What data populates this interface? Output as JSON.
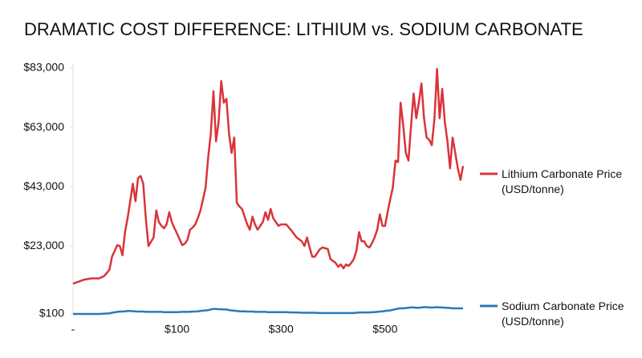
{
  "chart_data": {
    "type": "line",
    "title": "DRAMATIC COST DIFFERENCE: LITHIUM vs. SODIUM CARBONATE",
    "x": [
      0,
      4,
      7,
      10,
      12,
      14,
      15,
      17,
      18,
      19,
      20,
      21,
      22,
      23,
      24,
      25,
      26,
      27,
      28,
      29,
      31,
      32,
      33,
      34,
      35,
      36,
      37,
      38,
      39,
      40,
      42,
      43,
      44,
      45,
      46,
      47,
      48,
      49,
      50,
      51,
      52,
      53,
      54,
      55,
      56,
      57,
      58,
      59,
      60,
      61,
      62,
      63,
      64,
      65,
      66,
      67,
      68,
      69,
      70,
      71,
      72,
      73,
      74,
      75,
      76,
      77,
      78,
      79,
      80,
      82,
      84,
      86,
      88,
      89,
      90,
      91,
      92,
      93,
      95,
      96,
      98,
      99,
      101,
      102,
      103,
      104,
      105,
      106,
      107,
      108,
      109,
      110,
      111,
      112,
      113,
      114,
      115,
      116,
      117,
      118,
      119,
      120,
      121,
      122,
      123,
      124,
      125,
      126,
      127,
      128,
      129,
      130,
      131,
      132,
      133,
      134,
      135,
      136,
      137,
      138,
      139,
      140,
      141,
      142,
      143,
      144,
      145,
      146,
      147,
      148,
      149,
      150
    ],
    "series": [
      {
        "name": "Lithium Carbonate Price (USD/tonne)",
        "color": "#d9343a",
        "values": [
          10300,
          11600,
          12100,
          12100,
          12900,
          15000,
          19400,
          23300,
          23000,
          19900,
          27700,
          32400,
          38100,
          44000,
          38100,
          45900,
          46600,
          44000,
          32400,
          23000,
          25900,
          35000,
          31100,
          29800,
          29000,
          30300,
          34400,
          31100,
          29000,
          27200,
          23300,
          23800,
          25100,
          28500,
          29200,
          30300,
          32400,
          35000,
          38800,
          42700,
          53100,
          60900,
          75200,
          58300,
          64800,
          78600,
          71300,
          72600,
          60900,
          54400,
          59600,
          37600,
          36300,
          35500,
          32900,
          30300,
          28500,
          32900,
          30300,
          28500,
          29800,
          31100,
          34400,
          31800,
          35500,
          32400,
          31100,
          29800,
          30300,
          30300,
          28200,
          25900,
          24600,
          23000,
          25900,
          22500,
          19400,
          19400,
          22000,
          22500,
          22000,
          18600,
          17300,
          16000,
          16800,
          15500,
          16800,
          16300,
          17300,
          18600,
          21500,
          27700,
          24600,
          24600,
          23000,
          22500,
          24000,
          25900,
          28500,
          33700,
          29800,
          29800,
          34400,
          38800,
          42700,
          51800,
          51300,
          71300,
          63500,
          54400,
          51800,
          63500,
          74400,
          66100,
          71300,
          77800,
          66100,
          59600,
          58800,
          57000,
          66100,
          82700,
          66100,
          76000,
          64800,
          58300,
          49200,
          59600,
          54400,
          49200,
          45300,
          50000
        ]
      },
      {
        "name": "Sodium Carbonate Price (USD/tonne)",
        "color": "#2a7ab8",
        "values": [
          100,
          100,
          100,
          100,
          200,
          300,
          500,
          800,
          900,
          900,
          1000,
          1100,
          1100,
          1000,
          1000,
          900,
          900,
          900,
          800,
          800,
          800,
          800,
          800,
          800,
          700,
          700,
          700,
          700,
          700,
          700,
          800,
          800,
          800,
          800,
          900,
          900,
          1000,
          1100,
          1200,
          1300,
          1400,
          1600,
          1800,
          1800,
          1700,
          1700,
          1600,
          1600,
          1400,
          1300,
          1200,
          1100,
          1000,
          1000,
          1000,
          900,
          900,
          900,
          800,
          800,
          800,
          800,
          800,
          700,
          700,
          700,
          700,
          700,
          700,
          700,
          600,
          600,
          500,
          500,
          500,
          500,
          500,
          500,
          400,
          400,
          400,
          400,
          400,
          400,
          400,
          400,
          400,
          400,
          400,
          400,
          500,
          600,
          600,
          600,
          600,
          600,
          700,
          700,
          800,
          900,
          1000,
          1100,
          1200,
          1300,
          1500,
          1700,
          1900,
          2000,
          2000,
          2100,
          2200,
          2300,
          2300,
          2200,
          2200,
          2300,
          2400,
          2400,
          2300,
          2300,
          2300,
          2400,
          2300,
          2300,
          2200,
          2200,
          2100,
          2000,
          2000,
          2000,
          2000,
          2000
        ]
      }
    ],
    "xlim": [
      0,
      150
    ],
    "xticks": [
      {
        "value": 0,
        "label": "-"
      },
      {
        "value": 40,
        "label": "$100"
      },
      {
        "value": 80,
        "label": "$300"
      },
      {
        "value": 120,
        "label": "$500"
      }
    ],
    "ylim": [
      100,
      83000
    ],
    "yticks": [
      {
        "value": 100,
        "label": "$100"
      },
      {
        "value": 23000,
        "label": "$23,000"
      },
      {
        "value": 43000,
        "label": "$43,000"
      },
      {
        "value": 63000,
        "label": "$63,000"
      },
      {
        "value": 83000,
        "label": "$83,000"
      }
    ],
    "grid": false,
    "legend": "right"
  }
}
